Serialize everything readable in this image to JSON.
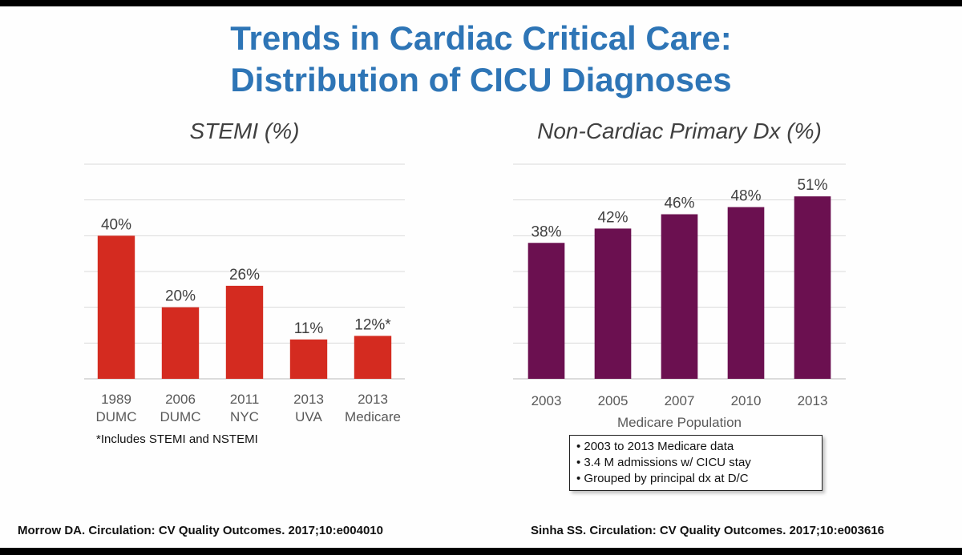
{
  "slide": {
    "title_line1": "Trends in Cardiac Critical Care:",
    "title_line2": "Distribution of CICU Diagnoses",
    "footnote": "*Includes STEMI and NSTEMI",
    "notes": [
      "2003 to 2013 Medicare data",
      "3.4 M admissions w/ CICU stay",
      "Grouped by principal dx at D/C"
    ],
    "citation_left": "Morrow DA. Circulation: CV Quality Outcomes. 2017;10:e004010",
    "citation_right": "Sinha SS. Circulation: CV Quality Outcomes. 2017;10:e003616"
  },
  "chart_data": [
    {
      "type": "bar",
      "title": "STEMI (%)",
      "categories": [
        [
          "1989",
          "DUMC"
        ],
        [
          "2006",
          "DUMC"
        ],
        [
          "2011",
          "NYC"
        ],
        [
          "2013",
          "UVA"
        ],
        [
          "2013",
          "Medicare"
        ]
      ],
      "values": [
        40,
        20,
        26,
        11,
        12
      ],
      "data_labels": [
        "40%",
        "20%",
        "26%",
        "11%",
        "12%*"
      ],
      "xlabel": "",
      "ylabel": "",
      "ylim": [
        0,
        60
      ],
      "grid": true,
      "color": "#d42b20"
    },
    {
      "type": "bar",
      "title": "Non-Cardiac Primary Dx (%)",
      "categories": [
        [
          "2003"
        ],
        [
          "2005"
        ],
        [
          "2007"
        ],
        [
          "2010"
        ],
        [
          "2013"
        ]
      ],
      "values": [
        38,
        42,
        46,
        48,
        51
      ],
      "data_labels": [
        "38%",
        "42%",
        "46%",
        "48%",
        "51%"
      ],
      "xlabel": "Medicare Population",
      "ylabel": "",
      "ylim": [
        0,
        60
      ],
      "grid": true,
      "color": "#6b1050"
    }
  ]
}
